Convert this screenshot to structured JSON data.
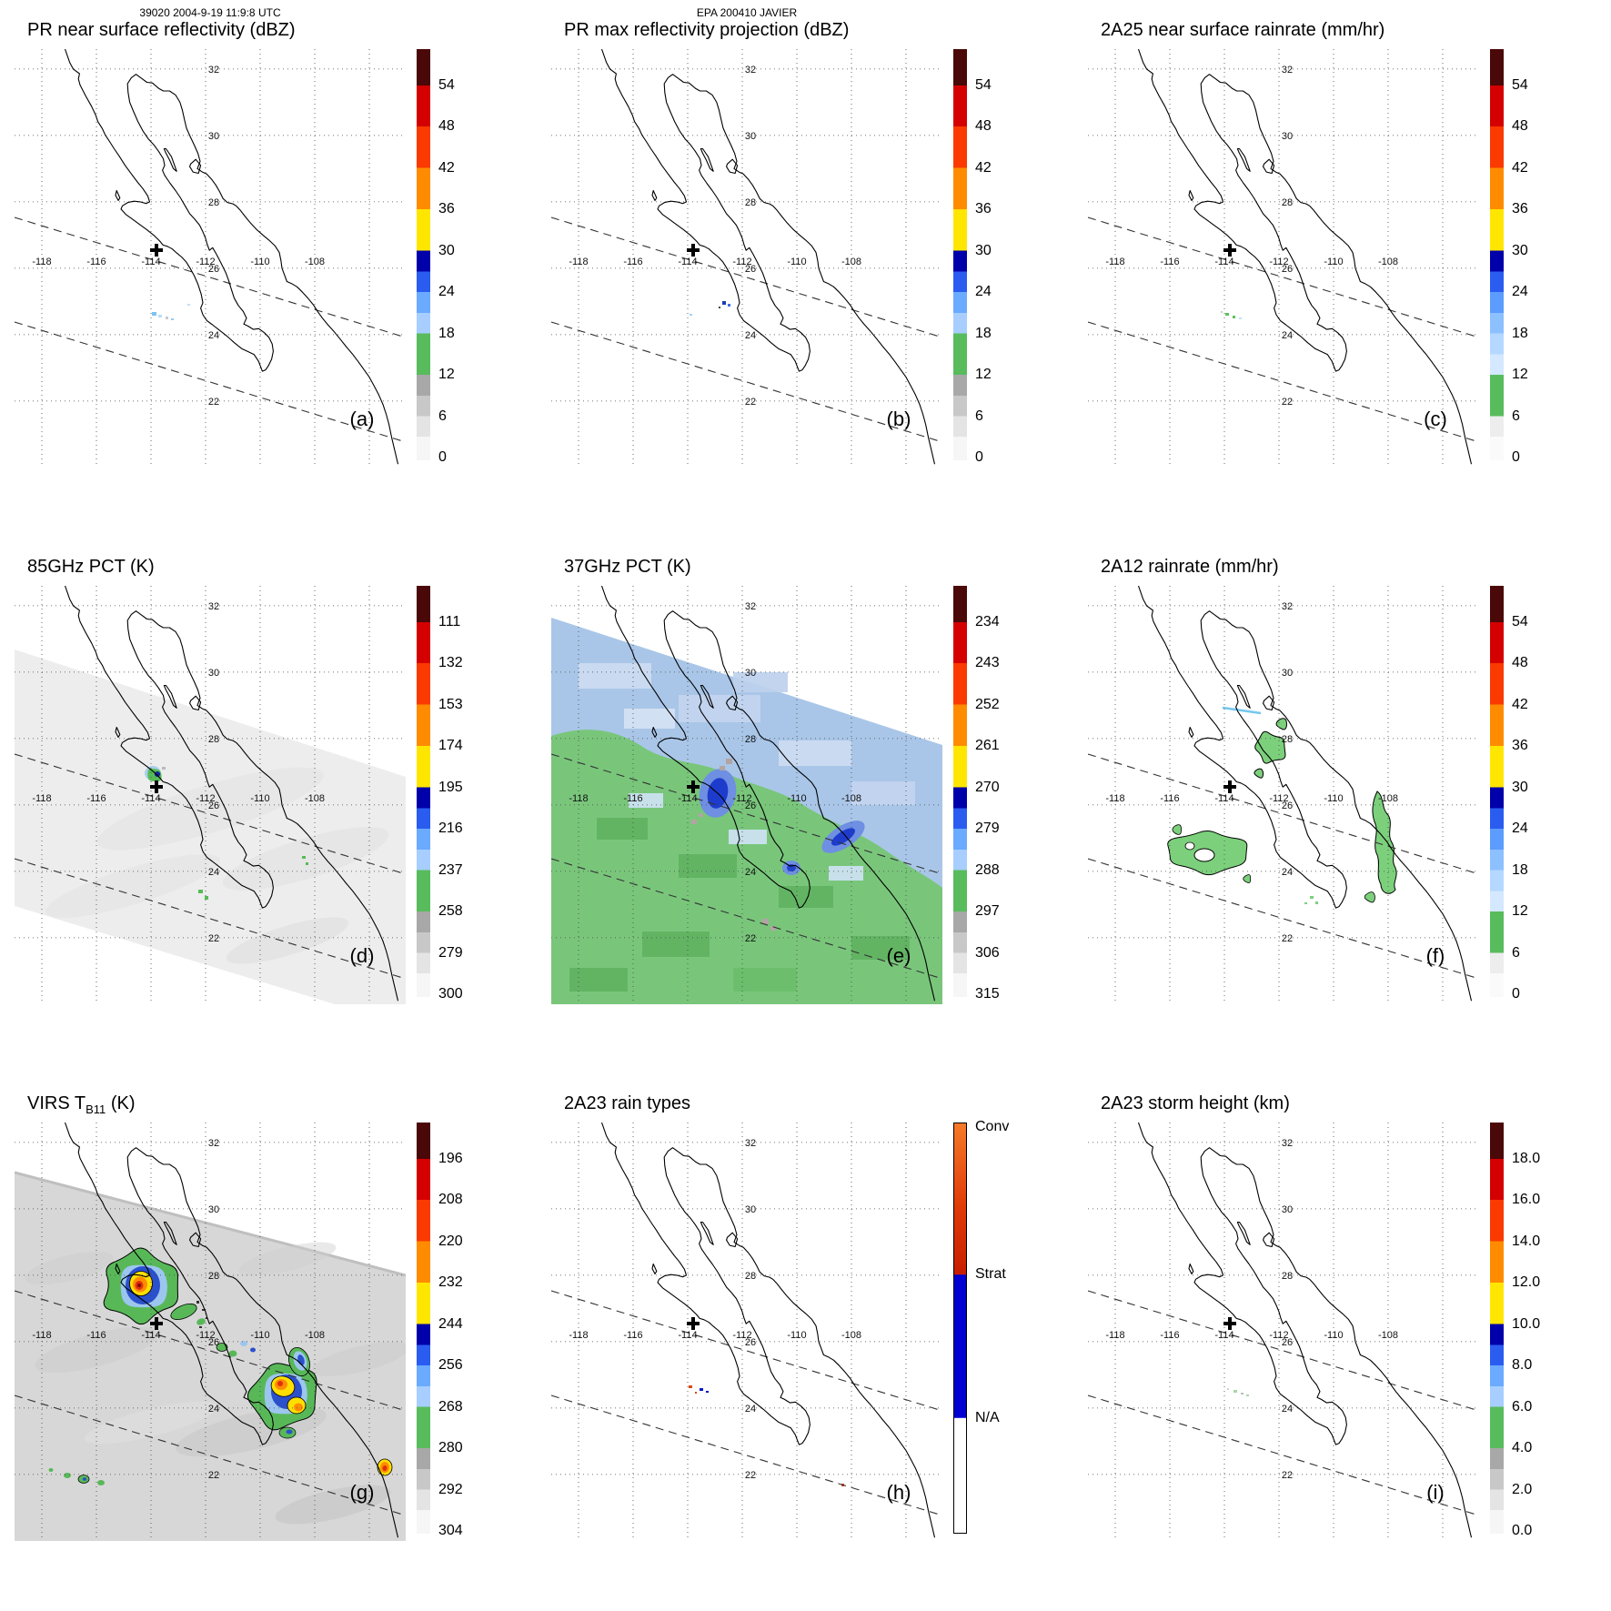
{
  "header": {
    "orbit_line": "39020 2004-9-19 11:9:8 UTC",
    "storm_line": "EPA 200410 JAVIER"
  },
  "map": {
    "lon_labels": [
      "-118",
      "-116",
      "-114",
      "-112",
      "-110",
      "-108"
    ],
    "lat_labels": [
      "32",
      "30",
      "28",
      "26",
      "24",
      "22"
    ],
    "marker": "+"
  },
  "panels": [
    {
      "letter": "(a)",
      "title": "PR near surface reflectivity (dBZ)",
      "colorbar_ticks": [
        "54",
        "48",
        "42",
        "36",
        "30",
        "24",
        "18",
        "12",
        "6",
        "0"
      ]
    },
    {
      "letter": "(b)",
      "title": "PR max reflectivity projection (dBZ)",
      "colorbar_ticks": [
        "54",
        "48",
        "42",
        "36",
        "30",
        "24",
        "18",
        "12",
        "6",
        "0"
      ]
    },
    {
      "letter": "(c)",
      "title": "2A25 near surface rainrate (mm/hr)",
      "colorbar_ticks": [
        "54",
        "48",
        "42",
        "36",
        "30",
        "24",
        "18",
        "12",
        "6",
        "0"
      ]
    },
    {
      "letter": "(d)",
      "title": "85GHz PCT (K)",
      "colorbar_ticks": [
        "111",
        "132",
        "153",
        "174",
        "195",
        "216",
        "237",
        "258",
        "279",
        "300"
      ]
    },
    {
      "letter": "(e)",
      "title": "37GHz PCT (K)",
      "colorbar_ticks": [
        "234",
        "243",
        "252",
        "261",
        "270",
        "279",
        "288",
        "297",
        "306",
        "315"
      ]
    },
    {
      "letter": "(f)",
      "title": "2A12 rainrate (mm/hr)",
      "colorbar_ticks": [
        "54",
        "48",
        "42",
        "36",
        "30",
        "24",
        "18",
        "12",
        "6",
        "0"
      ]
    },
    {
      "letter": "(g)",
      "title_pre": "VIRS T",
      "title_sub": "B11",
      "title_post": " (K)",
      "colorbar_ticks": [
        "196",
        "208",
        "220",
        "232",
        "244",
        "256",
        "268",
        "280",
        "292",
        "304"
      ]
    },
    {
      "letter": "(h)",
      "title": "2A23 rain types",
      "colorbar_ticks": [
        {
          "label": "Conv",
          "pos": 1
        },
        {
          "label": "Strat",
          "pos": 37
        },
        {
          "label": "N/A",
          "pos": 72
        }
      ]
    },
    {
      "letter": "(i)",
      "title": "2A23 storm height (km)",
      "colorbar_ticks": [
        "18.0",
        "16.0",
        "14.0",
        "12.0",
        "10.0",
        "8.0",
        "6.0",
        "4.0",
        "2.0",
        "0.0"
      ]
    }
  ],
  "chart_data": {
    "type": "heatmap",
    "title": "EPA 200410 JAVIER",
    "subtitle": "39020 2004-9-19 11:9:8 UTC",
    "layout": "3x3 geographic panels (Baja California / Gulf of California), each with vertical colorbar at right, dotted lat/lon graticule, dashed PR swath edges, storm-center cross marker",
    "map_extent": {
      "lon_min": -119,
      "lon_max": -105,
      "lat_min": 20,
      "lat_max": 32.6
    },
    "grid": {
      "lon_ticks": [
        -118,
        -116,
        -114,
        -112,
        -110,
        -108
      ],
      "lat_ticks": [
        32,
        30,
        28,
        26,
        24,
        22
      ],
      "style": "dotted"
    },
    "marker": {
      "symbol": "+",
      "lon": -113.8,
      "lat": 26.5
    },
    "panels": [
      {
        "label": "(a)",
        "product": "PR near surface reflectivity",
        "units": "dBZ",
        "colorbar_ticks": [
          54,
          48,
          42,
          36,
          30,
          24,
          18,
          12,
          6,
          0
        ]
      },
      {
        "label": "(b)",
        "product": "PR max reflectivity projection",
        "units": "dBZ",
        "colorbar_ticks": [
          54,
          48,
          42,
          36,
          30,
          24,
          18,
          12,
          6,
          0
        ]
      },
      {
        "label": "(c)",
        "product": "2A25 near surface rainrate",
        "units": "mm/hr",
        "colorbar_ticks": [
          54,
          48,
          42,
          36,
          30,
          24,
          18,
          12,
          6,
          0
        ]
      },
      {
        "label": "(d)",
        "product": "85GHz PCT",
        "units": "K",
        "colorbar_ticks": [
          111,
          132,
          153,
          174,
          195,
          216,
          237,
          258,
          279,
          300
        ]
      },
      {
        "label": "(e)",
        "product": "37GHz PCT",
        "units": "K",
        "colorbar_ticks": [
          234,
          243,
          252,
          261,
          270,
          279,
          288,
          297,
          306,
          315
        ]
      },
      {
        "label": "(f)",
        "product": "2A12 rainrate",
        "units": "mm/hr",
        "colorbar_ticks": [
          54,
          48,
          42,
          36,
          30,
          24,
          18,
          12,
          6,
          0
        ]
      },
      {
        "label": "(g)",
        "product": "VIRS TB11",
        "units": "K",
        "colorbar_ticks": [
          196,
          208,
          220,
          232,
          244,
          256,
          268,
          280,
          292,
          304
        ]
      },
      {
        "label": "(h)",
        "product": "2A23 rain types",
        "units": "category",
        "colorbar_ticks": [
          "Conv",
          "Strat",
          "N/A"
        ]
      },
      {
        "label": "(i)",
        "product": "2A23 storm height",
        "units": "km",
        "colorbar_ticks": [
          18.0,
          16.0,
          14.0,
          12.0,
          10.0,
          8.0,
          6.0,
          4.0,
          2.0,
          0.0
        ]
      }
    ]
  },
  "colors": {
    "convective": "#e03c08",
    "stratiform": "#0000d2",
    "rain_green": "#58bc5c",
    "deep_blue": "#2b50cc"
  }
}
